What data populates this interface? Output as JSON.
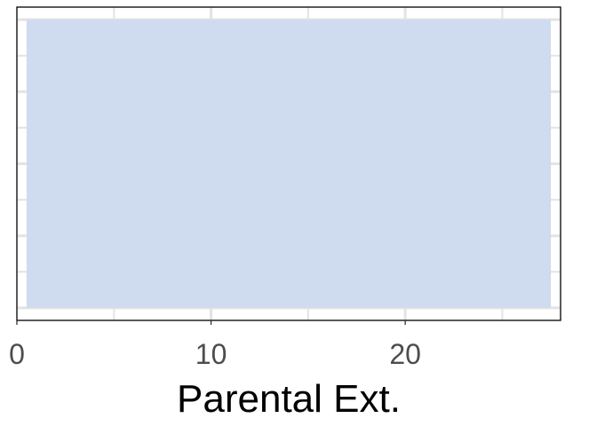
{
  "chart_data": {
    "type": "area",
    "title": "",
    "xlabel": "Parental Ext.",
    "ylabel": "",
    "xlim": [
      0,
      28
    ],
    "x_ticks": [
      0,
      10,
      20
    ],
    "x_tick_labels": [
      "0",
      "10",
      "20"
    ],
    "series": [
      {
        "x": [
          0.5,
          27.5
        ],
        "y": [
          1,
          1
        ]
      }
    ],
    "grid": true,
    "colors": {
      "fill": "#cfdbee",
      "grid": "#e3e3e3",
      "frame": "#000000",
      "tick_label": "#4d4d4d",
      "axis_title": "#000000"
    }
  }
}
